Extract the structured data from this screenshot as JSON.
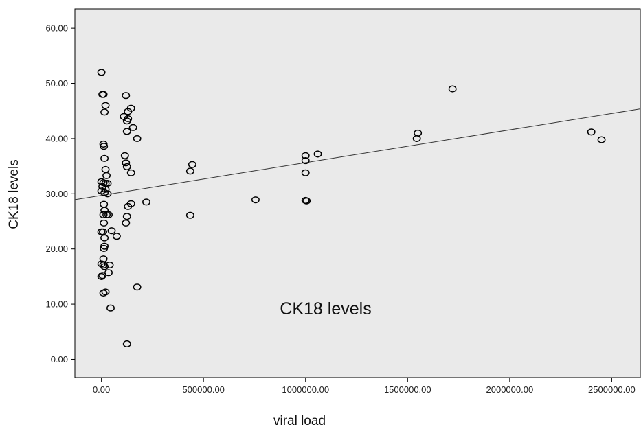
{
  "chart_data": {
    "type": "scatter",
    "title": "",
    "xlabel": "viral load",
    "ylabel": "CK18  levels",
    "annotation": "CK18  levels",
    "xlim": [
      -130000,
      2640000
    ],
    "ylim": [
      -3.3,
      63.5
    ],
    "x_ticks": [
      0,
      500000,
      1000000,
      1500000,
      2000000,
      2500000
    ],
    "x_tick_labels": [
      "0.00",
      "500000.00",
      "1000000.00",
      "1500000.00",
      "2000000.00",
      "2500000.00"
    ],
    "y_ticks": [
      0,
      10,
      20,
      30,
      40,
      50,
      60
    ],
    "y_tick_labels": [
      "0.00",
      "10.00",
      "20.00",
      "30.00",
      "40.00",
      "50.00",
      "60.00"
    ],
    "grid": false,
    "plot_background": "#eaeaea",
    "marker_color": "#000000",
    "fit_line": {
      "intercept": 29.7,
      "slope": 5.94e-06
    },
    "series": [
      {
        "points": [
          {
            "x": 0,
            "y": 52.0
          },
          {
            "x": 5000,
            "y": 48.0
          },
          {
            "x": 10000,
            "y": 48.0
          },
          {
            "x": 20000,
            "y": 46.0
          },
          {
            "x": 15000,
            "y": 44.8
          },
          {
            "x": 10000,
            "y": 39.0
          },
          {
            "x": 12000,
            "y": 38.6
          },
          {
            "x": 15000,
            "y": 36.4
          },
          {
            "x": 20000,
            "y": 34.4
          },
          {
            "x": 25000,
            "y": 33.3
          },
          {
            "x": 0,
            "y": 32.2
          },
          {
            "x": 10000,
            "y": 32.0
          },
          {
            "x": 20000,
            "y": 31.9
          },
          {
            "x": 30000,
            "y": 31.9
          },
          {
            "x": 5000,
            "y": 31.3
          },
          {
            "x": 20000,
            "y": 30.8
          },
          {
            "x": 0,
            "y": 30.5
          },
          {
            "x": 15000,
            "y": 30.2
          },
          {
            "x": 30000,
            "y": 30.0
          },
          {
            "x": 12000,
            "y": 28.1
          },
          {
            "x": 15000,
            "y": 27.0
          },
          {
            "x": 10000,
            "y": 26.2
          },
          {
            "x": 25000,
            "y": 26.2
          },
          {
            "x": 35000,
            "y": 26.2
          },
          {
            "x": 12000,
            "y": 24.7
          },
          {
            "x": 50000,
            "y": 23.3
          },
          {
            "x": 0,
            "y": 23.1
          },
          {
            "x": 8000,
            "y": 23.1
          },
          {
            "x": 75000,
            "y": 22.3
          },
          {
            "x": 15000,
            "y": 22.0
          },
          {
            "x": 15000,
            "y": 20.5
          },
          {
            "x": 12000,
            "y": 20.1
          },
          {
            "x": 10000,
            "y": 18.2
          },
          {
            "x": 0,
            "y": 17.3
          },
          {
            "x": 10000,
            "y": 17.1
          },
          {
            "x": 40000,
            "y": 17.1
          },
          {
            "x": 15000,
            "y": 16.8
          },
          {
            "x": 35000,
            "y": 15.7
          },
          {
            "x": 5000,
            "y": 15.2
          },
          {
            "x": 0,
            "y": 15.0
          },
          {
            "x": 10000,
            "y": 12.0
          },
          {
            "x": 20000,
            "y": 12.2
          },
          {
            "x": 45000,
            "y": 9.3
          },
          {
            "x": 120000,
            "y": 47.8
          },
          {
            "x": 145000,
            "y": 45.5
          },
          {
            "x": 130000,
            "y": 44.9
          },
          {
            "x": 110000,
            "y": 44.0
          },
          {
            "x": 130000,
            "y": 43.6
          },
          {
            "x": 125000,
            "y": 43.2
          },
          {
            "x": 155000,
            "y": 42.0
          },
          {
            "x": 125000,
            "y": 41.3
          },
          {
            "x": 175000,
            "y": 40.0
          },
          {
            "x": 115000,
            "y": 36.9
          },
          {
            "x": 120000,
            "y": 35.6
          },
          {
            "x": 125000,
            "y": 34.9
          },
          {
            "x": 145000,
            "y": 33.8
          },
          {
            "x": 145000,
            "y": 28.2
          },
          {
            "x": 130000,
            "y": 27.7
          },
          {
            "x": 125000,
            "y": 25.9
          },
          {
            "x": 120000,
            "y": 24.7
          },
          {
            "x": 220000,
            "y": 28.5
          },
          {
            "x": 175000,
            "y": 13.1
          },
          {
            "x": 125000,
            "y": 2.8
          },
          {
            "x": 445000,
            "y": 35.3
          },
          {
            "x": 435000,
            "y": 34.1
          },
          {
            "x": 435000,
            "y": 26.1
          },
          {
            "x": 755000,
            "y": 28.9
          },
          {
            "x": 1000000,
            "y": 36.9
          },
          {
            "x": 1060000,
            "y": 37.2
          },
          {
            "x": 1000000,
            "y": 36.0
          },
          {
            "x": 1000000,
            "y": 33.8
          },
          {
            "x": 1000000,
            "y": 28.8
          },
          {
            "x": 1005000,
            "y": 28.7
          },
          {
            "x": 1545000,
            "y": 40.0
          },
          {
            "x": 1550000,
            "y": 41.0
          },
          {
            "x": 1720000,
            "y": 49.0
          },
          {
            "x": 2400000,
            "y": 41.2
          },
          {
            "x": 2450000,
            "y": 39.8
          }
        ]
      }
    ]
  }
}
